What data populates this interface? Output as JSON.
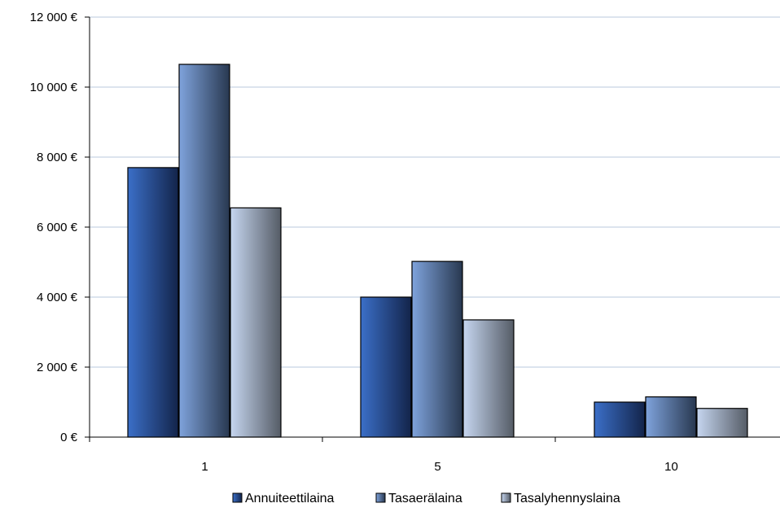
{
  "chart_data": {
    "type": "bar",
    "title": "",
    "xlabel": "",
    "ylabel": "",
    "categories": [
      "1",
      "5",
      "10"
    ],
    "series": [
      {
        "name": "Annuiteettilaina",
        "values": [
          7700,
          4000,
          1000
        ],
        "color_light": "#3b6fc8",
        "color_dark": "#13244a"
      },
      {
        "name": "Tasaerälaina",
        "values": [
          10650,
          5020,
          1150
        ],
        "color_light": "#7fa3dc",
        "color_dark": "#283850"
      },
      {
        "name": "Tasalyhennyslaina",
        "values": [
          6550,
          3350,
          820
        ],
        "color_light": "#c6d6f0",
        "color_dark": "#555c66"
      }
    ],
    "ylim": [
      0,
      12000
    ],
    "yticks": [
      0,
      2000,
      4000,
      6000,
      8000,
      10000,
      12000
    ],
    "ytick_labels": [
      "0 €",
      "2 000 €",
      "4 000 €",
      "6 000 €",
      "8 000 €",
      "10 000 €",
      "12 000 €"
    ],
    "grid": true,
    "legend_position": "bottom"
  }
}
